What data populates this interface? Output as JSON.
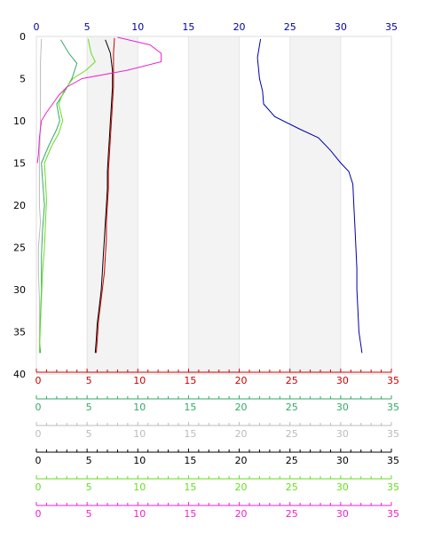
{
  "chart_data": {
    "type": "line",
    "title": "",
    "y_axis": {
      "label": "",
      "range": [
        0,
        40
      ],
      "inverted": true,
      "ticks": [
        0,
        5,
        10,
        15,
        20,
        25,
        30,
        35,
        40
      ],
      "tick_labels": [
        "0",
        "5",
        "10",
        "15",
        "20",
        "25",
        "30",
        "35",
        "40"
      ]
    },
    "top_axis": {
      "color": "#0000aa",
      "range": [
        0,
        35
      ],
      "ticks": [
        0,
        5,
        10,
        15,
        20,
        25,
        30,
        35
      ],
      "tick_labels": [
        "0",
        "5",
        "10",
        "15",
        "20",
        "25",
        "30",
        "35"
      ]
    },
    "bottom_axes": [
      {
        "color": "#cc0000",
        "range": [
          0,
          35
        ],
        "tick_labels": [
          "0",
          "5",
          "10",
          "15",
          "20",
          "25",
          "30",
          "35"
        ]
      },
      {
        "color": "#33aa66",
        "range": [
          0,
          35
        ],
        "tick_labels": [
          "0",
          "5",
          "10",
          "15",
          "20",
          "25",
          "30",
          "35"
        ]
      },
      {
        "color": "#bbbbbb",
        "range": [
          0,
          35
        ],
        "tick_labels": [
          "0",
          "5",
          "10",
          "15",
          "20",
          "25",
          "30",
          "35"
        ]
      },
      {
        "color": "#000000",
        "range": [
          0,
          35
        ],
        "tick_labels": [
          "0",
          "5",
          "10",
          "15",
          "20",
          "25",
          "30",
          "35"
        ]
      },
      {
        "color": "#66dd22",
        "range": [
          0,
          35
        ],
        "tick_labels": [
          "0",
          "5",
          "10",
          "15",
          "20",
          "25",
          "30",
          "35"
        ]
      },
      {
        "color": "#ee22cc",
        "range": [
          0,
          35
        ],
        "tick_labels": [
          "0",
          "5",
          "10",
          "15",
          "20",
          "25",
          "30",
          "35"
        ]
      }
    ],
    "shaded_bands_x": [
      [
        5,
        10
      ],
      [
        15,
        20
      ],
      [
        25,
        30
      ]
    ],
    "grid": true,
    "series": [
      {
        "color": "#0000aa",
        "axis": "top",
        "points": [
          [
            22.1,
            0.3
          ],
          [
            21.8,
            2.5
          ],
          [
            22.0,
            5
          ],
          [
            22.3,
            6.5
          ],
          [
            22.4,
            8
          ],
          [
            23.5,
            9.5
          ],
          [
            26.0,
            11
          ],
          [
            27.8,
            12
          ],
          [
            29.0,
            13.5
          ],
          [
            30.0,
            15
          ],
          [
            30.8,
            16
          ],
          [
            31.2,
            17.5
          ],
          [
            31.3,
            20
          ],
          [
            31.4,
            22.5
          ],
          [
            31.5,
            25
          ],
          [
            31.6,
            27.5
          ],
          [
            31.6,
            30
          ],
          [
            31.7,
            32.5
          ],
          [
            31.8,
            35
          ],
          [
            32.1,
            37.5
          ]
        ]
      },
      {
        "color": "#cc0000",
        "axis": "bottom0",
        "points": [
          [
            7.7,
            0.2
          ],
          [
            7.6,
            2
          ],
          [
            7.6,
            4
          ],
          [
            7.6,
            6
          ],
          [
            7.5,
            8
          ],
          [
            7.4,
            10
          ],
          [
            7.3,
            12
          ],
          [
            7.2,
            14
          ],
          [
            7.1,
            16
          ],
          [
            7.1,
            18
          ],
          [
            7.0,
            20
          ],
          [
            6.9,
            22
          ],
          [
            6.9,
            24
          ],
          [
            6.8,
            26
          ],
          [
            6.7,
            28
          ],
          [
            6.5,
            30
          ],
          [
            6.3,
            32
          ],
          [
            6.1,
            34
          ],
          [
            6.0,
            36
          ],
          [
            5.9,
            37.5
          ]
        ]
      },
      {
        "color": "#000000",
        "axis": "bottom3",
        "points": [
          [
            6.8,
            0.4
          ],
          [
            7.3,
            2
          ],
          [
            7.5,
            4
          ],
          [
            7.5,
            6
          ],
          [
            7.4,
            8
          ],
          [
            7.3,
            10
          ],
          [
            7.2,
            12
          ],
          [
            7.1,
            14
          ],
          [
            7.0,
            16
          ],
          [
            7.0,
            18
          ],
          [
            6.9,
            20
          ],
          [
            6.8,
            22
          ],
          [
            6.7,
            24
          ],
          [
            6.6,
            26
          ],
          [
            6.5,
            28
          ],
          [
            6.4,
            30
          ],
          [
            6.2,
            32
          ],
          [
            6.0,
            34
          ],
          [
            5.9,
            36
          ],
          [
            5.8,
            37.5
          ]
        ]
      },
      {
        "color": "#33aa66",
        "axis": "bottom1",
        "points": [
          [
            2.4,
            0.4
          ],
          [
            3.2,
            2
          ],
          [
            4.0,
            3.2
          ],
          [
            3.5,
            5
          ],
          [
            2.8,
            6.5
          ],
          [
            2.0,
            8
          ],
          [
            2.3,
            10
          ],
          [
            2.0,
            11
          ],
          [
            1.2,
            13
          ],
          [
            0.5,
            15
          ],
          [
            0.6,
            17
          ],
          [
            0.8,
            20
          ],
          [
            0.6,
            23
          ],
          [
            0.5,
            26
          ],
          [
            0.5,
            30
          ],
          [
            0.4,
            33
          ],
          [
            0.3,
            36
          ],
          [
            0.4,
            37.5
          ]
        ]
      },
      {
        "color": "#bbbbbb",
        "axis": "bottom2",
        "points": [
          [
            0.5,
            0.3
          ],
          [
            0.4,
            3
          ],
          [
            0.4,
            6
          ],
          [
            0.4,
            10
          ],
          [
            0.3,
            15
          ],
          [
            0.3,
            20
          ],
          [
            0.4,
            22
          ],
          [
            0.2,
            25
          ],
          [
            0.2,
            28
          ],
          [
            0.3,
            31
          ],
          [
            0.3,
            34
          ],
          [
            0.3,
            37.5
          ]
        ]
      },
      {
        "color": "#66dd22",
        "axis": "bottom4",
        "points": [
          [
            5.1,
            0.3
          ],
          [
            5.4,
            2
          ],
          [
            5.8,
            3
          ],
          [
            4.9,
            4
          ],
          [
            3.6,
            5
          ],
          [
            2.7,
            6.5
          ],
          [
            2.2,
            8
          ],
          [
            2.6,
            10
          ],
          [
            2.2,
            11.5
          ],
          [
            1.5,
            13
          ],
          [
            0.8,
            15
          ],
          [
            0.9,
            17
          ],
          [
            1.0,
            19.5
          ],
          [
            0.9,
            22
          ],
          [
            0.8,
            25
          ],
          [
            0.6,
            28
          ],
          [
            0.5,
            31
          ],
          [
            0.4,
            34
          ],
          [
            0.3,
            37.5
          ]
        ]
      },
      {
        "color": "#ee22cc",
        "axis": "bottom5",
        "points": [
          [
            8.0,
            0.1
          ],
          [
            11.2,
            1
          ],
          [
            12.3,
            2
          ],
          [
            12.3,
            3
          ],
          [
            9.0,
            4
          ],
          [
            4.5,
            5
          ],
          [
            3.0,
            6
          ],
          [
            2.2,
            7
          ],
          [
            1.6,
            8
          ],
          [
            1.0,
            9
          ],
          [
            0.5,
            10
          ],
          [
            0.3,
            12
          ],
          [
            0.2,
            14
          ],
          [
            0.1,
            15
          ]
        ]
      }
    ]
  }
}
